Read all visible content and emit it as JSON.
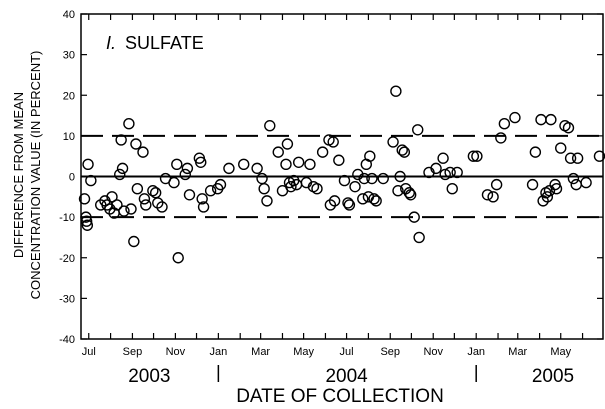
{
  "chart_data": {
    "type": "scatter",
    "panel_label_prefix": "I.",
    "panel_label": "SULFATE",
    "xlabel": "DATE OF COLLECTION",
    "ylabel": [
      "DIFFERENCE FROM MEAN",
      "CONCENTRATION VALUE (IN PERCENT)"
    ],
    "ylim": [
      -40,
      40
    ],
    "yticks": [
      -40,
      -30,
      -20,
      -10,
      0,
      10,
      20,
      30,
      40
    ],
    "xlim": [
      "2003-06-20",
      "2005-06-30"
    ],
    "x_ticks": [
      {
        "date": "2003-07-01",
        "label": "Jul"
      },
      {
        "date": "2003-08-01",
        "label": ""
      },
      {
        "date": "2003-09-01",
        "label": "Sep"
      },
      {
        "date": "2003-10-01",
        "label": ""
      },
      {
        "date": "2003-11-01",
        "label": "Nov"
      },
      {
        "date": "2003-12-01",
        "label": ""
      },
      {
        "date": "2004-01-01",
        "label": "Jan"
      },
      {
        "date": "2004-02-01",
        "label": ""
      },
      {
        "date": "2004-03-01",
        "label": "Mar"
      },
      {
        "date": "2004-04-01",
        "label": ""
      },
      {
        "date": "2004-05-01",
        "label": "May"
      },
      {
        "date": "2004-06-01",
        "label": ""
      },
      {
        "date": "2004-07-01",
        "label": "Jul"
      },
      {
        "date": "2004-08-01",
        "label": ""
      },
      {
        "date": "2004-09-01",
        "label": "Sep"
      },
      {
        "date": "2004-10-01",
        "label": ""
      },
      {
        "date": "2004-11-01",
        "label": "Nov"
      },
      {
        "date": "2004-12-01",
        "label": ""
      },
      {
        "date": "2005-01-01",
        "label": "Jan"
      },
      {
        "date": "2005-02-01",
        "label": ""
      },
      {
        "date": "2005-03-01",
        "label": "Mar"
      },
      {
        "date": "2005-04-01",
        "label": ""
      },
      {
        "date": "2005-05-01",
        "label": "May"
      },
      {
        "date": "2005-06-01",
        "label": ""
      }
    ],
    "years": [
      {
        "label": "2003",
        "center_date": "2003-09-25"
      },
      {
        "label": "2004",
        "center_date": "2004-07-01"
      },
      {
        "label": "2005",
        "center_date": "2005-04-20"
      }
    ],
    "year_dividers": [
      "2004-01-01",
      "2005-01-01"
    ],
    "reference_lines": [
      {
        "y": 10,
        "style": "dashed"
      },
      {
        "y": 0,
        "style": "solid"
      },
      {
        "y": -10,
        "style": "dashed"
      }
    ],
    "grid": false,
    "points": [
      [
        "2003-06-25",
        -5.5
      ],
      [
        "2003-06-27",
        -10
      ],
      [
        "2003-06-28",
        -11
      ],
      [
        "2003-06-29",
        -12
      ],
      [
        "2003-06-30",
        3
      ],
      [
        "2003-07-04",
        -1
      ],
      [
        "2003-07-18",
        -7
      ],
      [
        "2003-07-24",
        -6
      ],
      [
        "2003-07-27",
        -7
      ],
      [
        "2003-07-31",
        -8
      ],
      [
        "2003-08-03",
        -5
      ],
      [
        "2003-08-06",
        -9
      ],
      [
        "2003-08-10",
        -7
      ],
      [
        "2003-08-14",
        0.5
      ],
      [
        "2003-08-16",
        9
      ],
      [
        "2003-08-18",
        2
      ],
      [
        "2003-08-20",
        -8.5
      ],
      [
        "2003-08-27",
        13
      ],
      [
        "2003-08-30",
        -8
      ],
      [
        "2003-09-03",
        -16
      ],
      [
        "2003-09-06",
        8
      ],
      [
        "2003-09-08",
        -3
      ],
      [
        "2003-09-16",
        6
      ],
      [
        "2003-09-18",
        -5.5
      ],
      [
        "2003-09-20",
        -7
      ],
      [
        "2003-09-30",
        -3.5
      ],
      [
        "2003-10-04",
        -4
      ],
      [
        "2003-10-07",
        -6.5
      ],
      [
        "2003-10-13",
        -7.5
      ],
      [
        "2003-10-18",
        -0.5
      ],
      [
        "2003-10-30",
        -1.5
      ],
      [
        "2003-11-03",
        3
      ],
      [
        "2003-11-05",
        -20
      ],
      [
        "2003-11-15",
        0.5
      ],
      [
        "2003-11-18",
        2
      ],
      [
        "2003-11-21",
        -4.5
      ],
      [
        "2003-12-05",
        4.5
      ],
      [
        "2003-12-07",
        3.5
      ],
      [
        "2003-12-09",
        -5.5
      ],
      [
        "2003-12-11",
        -7.5
      ],
      [
        "2003-12-21",
        -3.5
      ],
      [
        "2003-12-31",
        -3
      ],
      [
        "2004-01-04",
        -2
      ],
      [
        "2004-01-16",
        2
      ],
      [
        "2004-02-06",
        3
      ],
      [
        "2004-02-25",
        2
      ],
      [
        "2004-03-03",
        -0.5
      ],
      [
        "2004-03-06",
        -3
      ],
      [
        "2004-03-10",
        -6
      ],
      [
        "2004-03-14",
        12.5
      ],
      [
        "2004-03-26",
        6
      ],
      [
        "2004-04-01",
        -3.5
      ],
      [
        "2004-04-06",
        3
      ],
      [
        "2004-04-08",
        8
      ],
      [
        "2004-04-11",
        -1.5
      ],
      [
        "2004-04-13",
        -2.5
      ],
      [
        "2004-04-17",
        -1
      ],
      [
        "2004-04-21",
        -2
      ],
      [
        "2004-04-24",
        3.5
      ],
      [
        "2004-05-05",
        -1.5
      ],
      [
        "2004-05-10",
        3
      ],
      [
        "2004-05-15",
        -2.5
      ],
      [
        "2004-05-20",
        -3
      ],
      [
        "2004-05-28",
        6
      ],
      [
        "2004-06-06",
        9
      ],
      [
        "2004-06-08",
        -7
      ],
      [
        "2004-06-12",
        8.5
      ],
      [
        "2004-06-14",
        -6
      ],
      [
        "2004-06-20",
        4
      ],
      [
        "2004-06-28",
        -1
      ],
      [
        "2004-07-03",
        -6.5
      ],
      [
        "2004-07-05",
        -7
      ],
      [
        "2004-07-13",
        -2.5
      ],
      [
        "2004-07-17",
        0.5
      ],
      [
        "2004-07-24",
        -5.5
      ],
      [
        "2004-07-26",
        -0.5
      ],
      [
        "2004-07-29",
        3
      ],
      [
        "2004-08-01",
        -5
      ],
      [
        "2004-08-03",
        5
      ],
      [
        "2004-08-06",
        -0.5
      ],
      [
        "2004-08-09",
        -5.5
      ],
      [
        "2004-08-12",
        -6
      ],
      [
        "2004-08-22",
        -0.5
      ],
      [
        "2004-09-05",
        8.5
      ],
      [
        "2004-09-09",
        21
      ],
      [
        "2004-09-12",
        -3.5
      ],
      [
        "2004-09-15",
        0
      ],
      [
        "2004-09-18",
        6.5
      ],
      [
        "2004-09-21",
        6
      ],
      [
        "2004-09-23",
        -3
      ],
      [
        "2004-09-28",
        -4
      ],
      [
        "2004-09-30",
        -4.5
      ],
      [
        "2004-10-05",
        -10
      ],
      [
        "2004-10-10",
        11.5
      ],
      [
        "2004-10-12",
        -15
      ],
      [
        "2004-10-26",
        1
      ],
      [
        "2004-11-05",
        2
      ],
      [
        "2004-11-15",
        4.5
      ],
      [
        "2004-11-18",
        0.5
      ],
      [
        "2004-11-25",
        1
      ],
      [
        "2004-11-28",
        -3
      ],
      [
        "2004-12-05",
        1
      ],
      [
        "2004-12-28",
        5
      ],
      [
        "2005-01-02",
        5
      ],
      [
        "2005-01-17",
        -4.5
      ],
      [
        "2005-01-25",
        -5
      ],
      [
        "2005-01-30",
        -2
      ],
      [
        "2005-02-05",
        9.5
      ],
      [
        "2005-02-10",
        13
      ],
      [
        "2005-02-25",
        14.5
      ],
      [
        "2005-03-22",
        -2
      ],
      [
        "2005-03-26",
        6
      ],
      [
        "2005-04-03",
        14
      ],
      [
        "2005-04-06",
        -6
      ],
      [
        "2005-04-10",
        -4
      ],
      [
        "2005-04-12",
        -5
      ],
      [
        "2005-04-15",
        -3.5
      ],
      [
        "2005-04-17",
        14
      ],
      [
        "2005-04-23",
        -2
      ],
      [
        "2005-04-25",
        -3
      ],
      [
        "2005-05-01",
        7
      ],
      [
        "2005-05-07",
        12.5
      ],
      [
        "2005-05-12",
        12
      ],
      [
        "2005-05-15",
        4.5
      ],
      [
        "2005-05-19",
        -0.5
      ],
      [
        "2005-05-23",
        -2
      ],
      [
        "2005-05-25",
        4.5
      ],
      [
        "2005-06-06",
        -1.5
      ],
      [
        "2005-06-25",
        5
      ]
    ]
  }
}
